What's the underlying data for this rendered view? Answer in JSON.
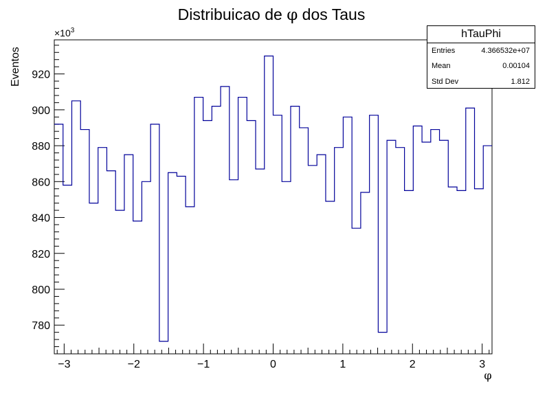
{
  "chart_data": {
    "type": "histogram",
    "title": "Distribuicao de φ dos Taus",
    "title_prefix": "Distribuicao de ",
    "title_symbol": "φ",
    "title_suffix": " dos Taus",
    "xlabel": "φ",
    "ylabel": "Eventos",
    "y_multiplier_label": "×10",
    "y_multiplier_exponent": "3",
    "xlim": [
      -3.1416,
      3.1416
    ],
    "ylim": [
      764,
      939
    ],
    "x_ticks": [
      -3,
      -2,
      -1,
      0,
      1,
      2,
      3
    ],
    "x_tick_labels": [
      "−3",
      "−2",
      "−1",
      "0",
      "1",
      "2",
      "3"
    ],
    "y_ticks": [
      780,
      800,
      820,
      840,
      860,
      880,
      900,
      920
    ],
    "y_tick_labels": [
      "780",
      "800",
      "820",
      "840",
      "860",
      "880",
      "900",
      "920"
    ],
    "grid": false,
    "line_color": "#000099",
    "values": [
      892,
      858,
      905,
      889,
      848,
      879,
      866,
      844,
      875,
      838,
      860,
      892,
      771,
      865,
      863,
      846,
      907,
      894,
      902,
      913,
      861,
      907,
      894,
      867,
      930,
      897,
      860,
      902,
      890,
      869,
      875,
      849,
      879,
      896,
      834,
      854,
      897,
      776,
      883,
      879,
      855,
      891,
      882,
      889,
      883,
      857,
      855,
      901,
      856,
      880
    ]
  },
  "stats": {
    "name": "hTauPhi",
    "entries_label": "Entries",
    "entries_value": "4.366532e+07",
    "mean_label": "Mean",
    "mean_value": "0.00104",
    "std_label": "Std Dev",
    "std_value": "1.812"
  }
}
